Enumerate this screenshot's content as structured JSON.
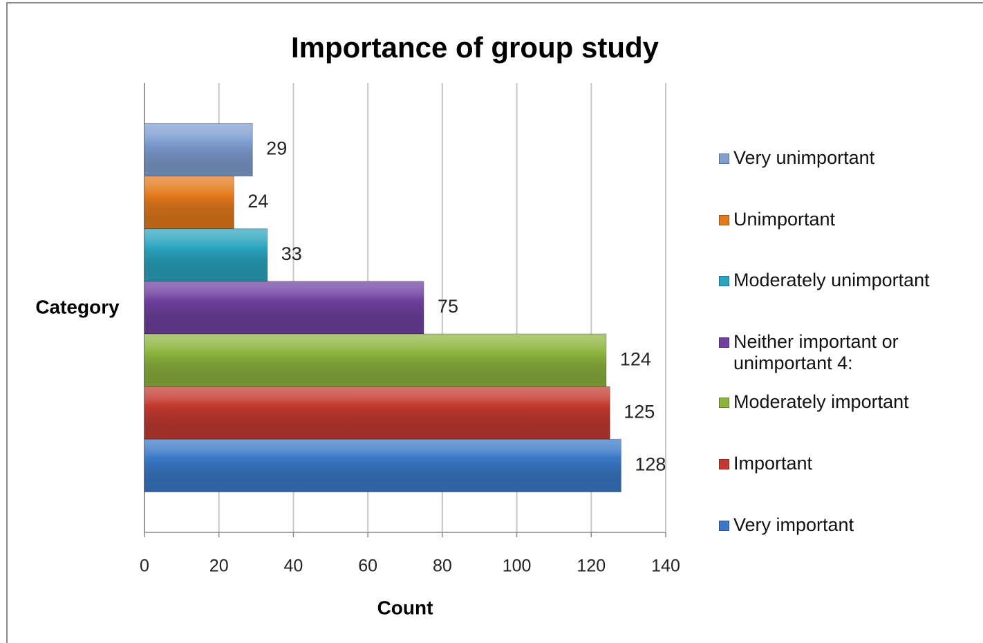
{
  "chart_data": {
    "type": "bar",
    "orientation": "horizontal",
    "title": "Importance of group study",
    "xlabel": "Count",
    "ylabel": "Category",
    "categories": [
      null
    ],
    "series": [
      {
        "name": "Very unimportant",
        "color": "#7f9fd2",
        "values": [
          29
        ]
      },
      {
        "name": "Unimportant",
        "color": "#e57a1c",
        "values": [
          24
        ]
      },
      {
        "name": "Moderately unimportant",
        "color": "#2aa5c0",
        "values": [
          33
        ]
      },
      {
        "name": "Neither important or unimportant 4:",
        "color": "#7041a0",
        "values": [
          75
        ]
      },
      {
        "name": "Moderately important",
        "color": "#8db53e",
        "values": [
          124
        ]
      },
      {
        "name": "Important",
        "color": "#c43a30",
        "values": [
          125
        ]
      },
      {
        "name": "Very important",
        "color": "#3a79c9",
        "values": [
          128
        ]
      }
    ],
    "xlim": [
      0,
      140
    ],
    "xticks": [
      0,
      20,
      40,
      60,
      80,
      100,
      120,
      140
    ],
    "grid": true,
    "legend": "right"
  }
}
